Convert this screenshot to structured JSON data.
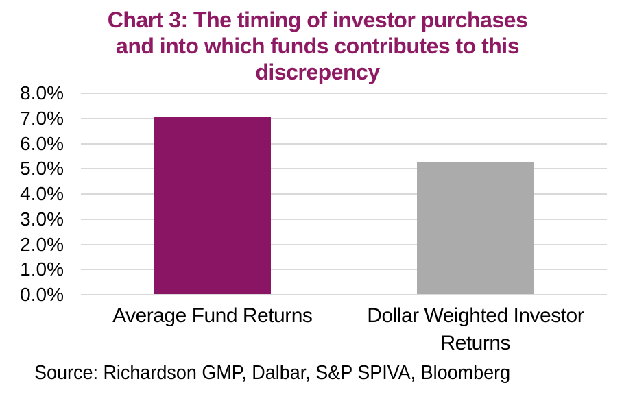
{
  "chart_data": {
    "type": "bar",
    "title": "Chart 3: The timing of investor purchases\nand into which funds contributes to this\ndiscrepency",
    "categories": [
      "Average Fund Returns",
      "Dollar Weighted Investor Returns"
    ],
    "values": [
      7.05,
      5.25
    ],
    "value_unit": "%",
    "bar_colors": [
      "#8B1565",
      "#ABABAB"
    ],
    "ylim": [
      0,
      8
    ],
    "ytick_step": 1,
    "ytick_labels": [
      "0.0%",
      "1.0%",
      "2.0%",
      "3.0%",
      "4.0%",
      "5.0%",
      "6.0%",
      "7.0%",
      "8.0%"
    ],
    "grid": true,
    "legend_position": "none",
    "xlabel": "",
    "ylabel": ""
  },
  "source_note": "Source: Richardson GMP, Dalbar, S&P SPIVA, Bloomberg",
  "colors": {
    "title": "#8E1A63",
    "bar_primary": "#8B1565",
    "bar_secondary": "#ABABAB",
    "gridline": "#D9D9D9",
    "text": "#000000",
    "background": "#FFFFFF"
  }
}
